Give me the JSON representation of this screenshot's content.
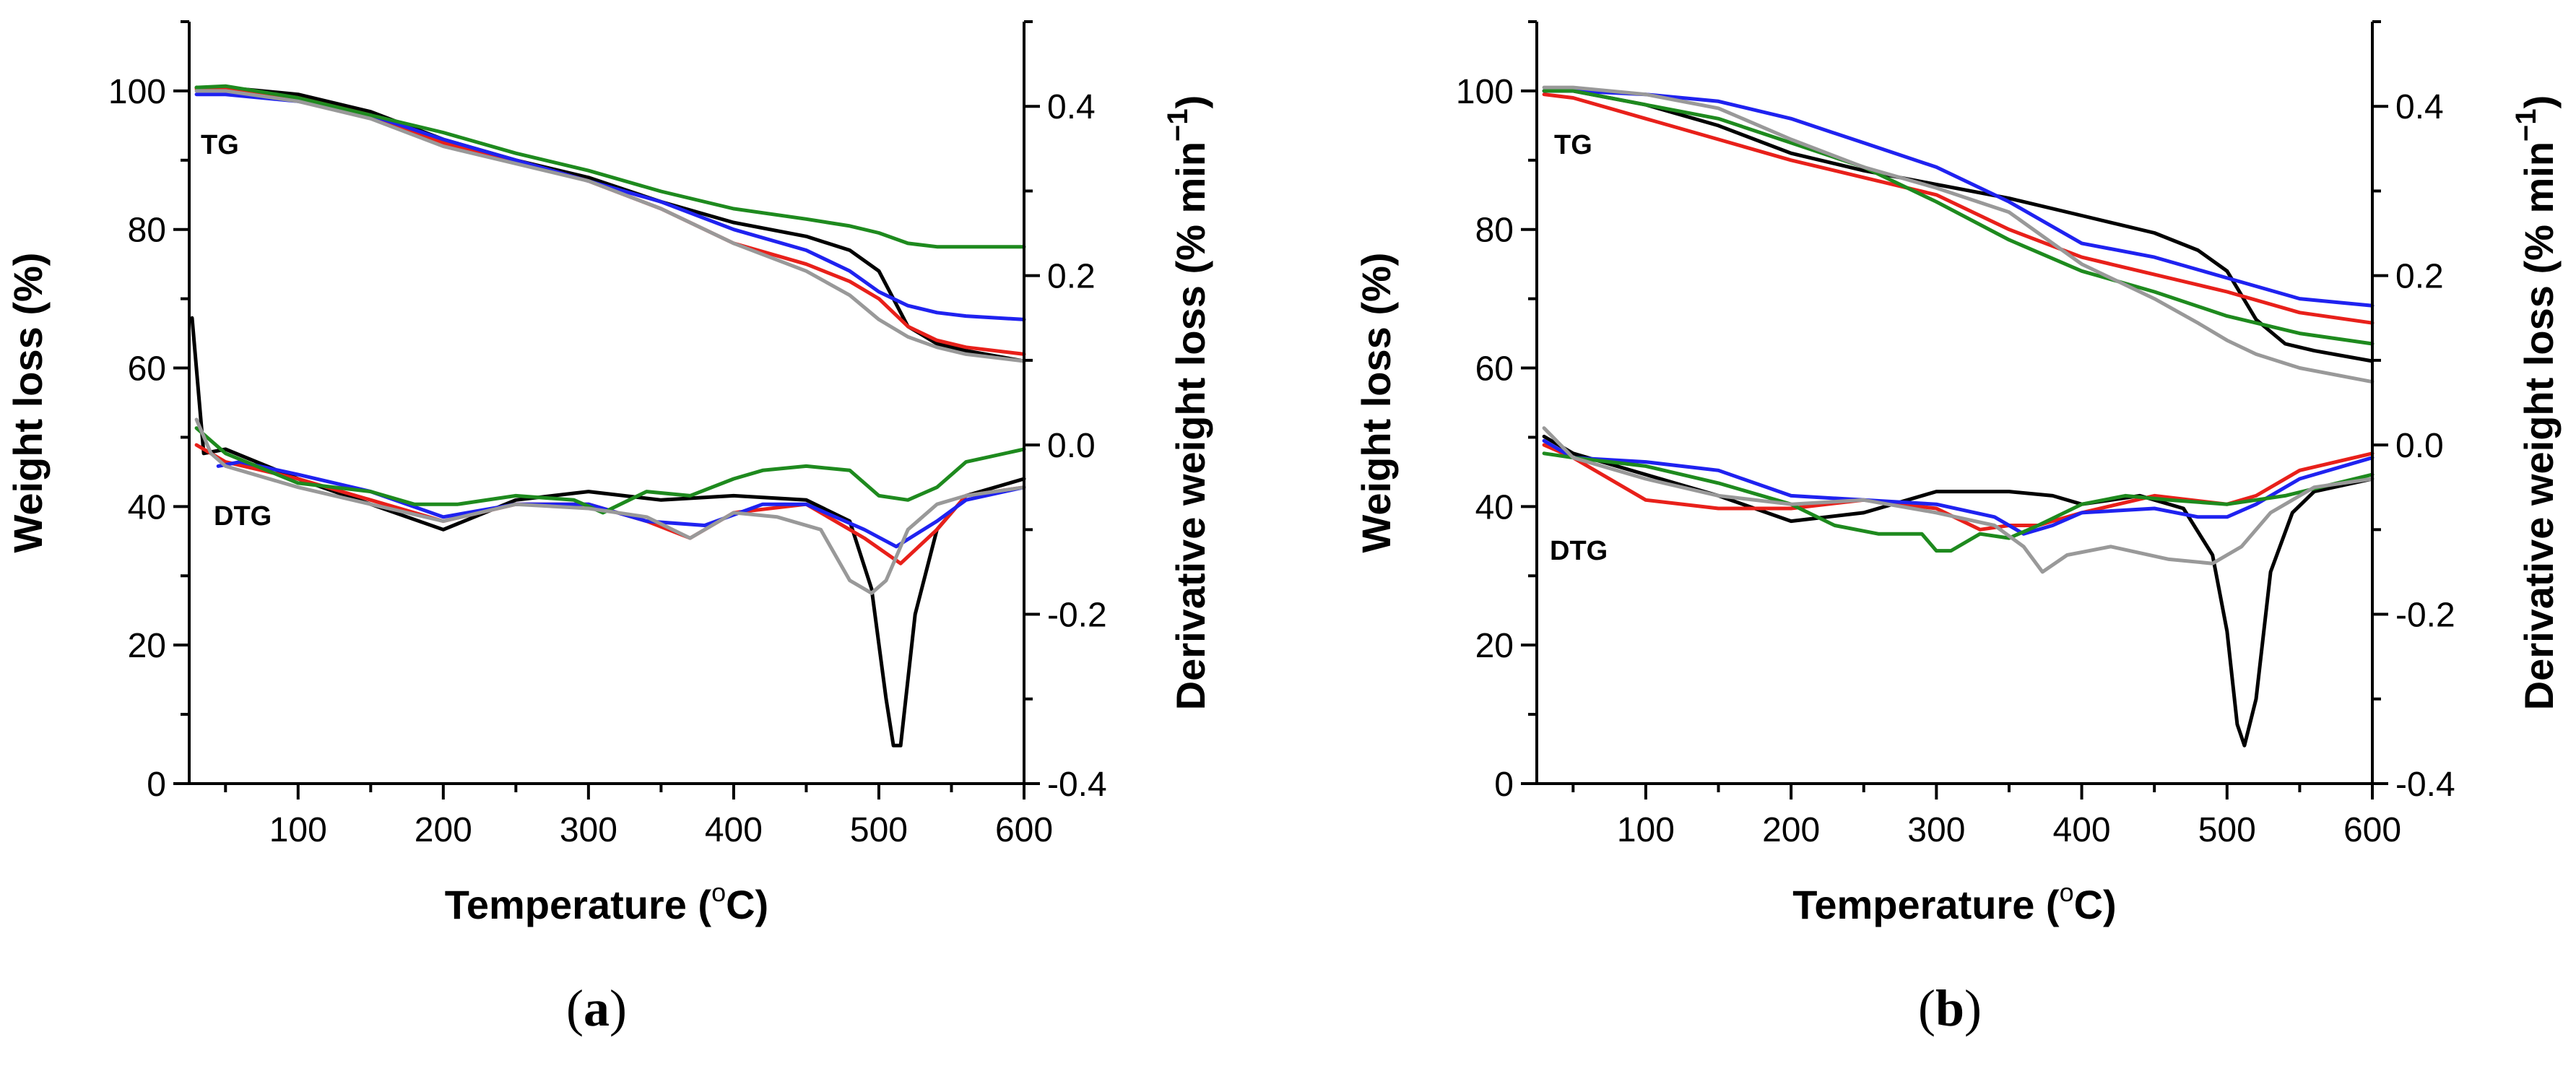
{
  "figure": {
    "panels": [
      {
        "caption": "(a)",
        "caption_letter": "a",
        "tg_label": "TG",
        "dtg_label": "DTG"
      },
      {
        "caption": "(b)",
        "caption_letter": "b",
        "tg_label": "TG",
        "dtg_label": "DTG"
      }
    ]
  },
  "chart_data": [
    {
      "type": "line",
      "panel": "a",
      "xlabel": "Temperature (°C)",
      "xlabel_parts": {
        "before": "Temperature (",
        "degree": "o",
        "after": "C)"
      },
      "ylabel": "Weight loss (%)",
      "y2label": "Derivative weight loss (% min−1)",
      "y2label_parts": {
        "main": "Derivative weight loss (% min",
        "sup": "−1",
        "close": ")"
      },
      "xlim": [
        25,
        600
      ],
      "ylim": [
        0,
        110
      ],
      "y2lim": [
        -0.4,
        0.5
      ],
      "x_ticks": [
        100,
        200,
        300,
        400,
        500,
        600
      ],
      "y_ticks": [
        0,
        20,
        40,
        60,
        80,
        100
      ],
      "y2_ticks": [
        -0.4,
        -0.2,
        0.0,
        0.2,
        0.4
      ],
      "x_tick_labels": [
        "100",
        "200",
        "300",
        "400",
        "500",
        "600"
      ],
      "y_tick_labels": [
        "0",
        "20",
        "40",
        "60",
        "80",
        "100"
      ],
      "y2_tick_labels": [
        "-0.4",
        "-0.2",
        "0.0",
        "0.2",
        "0.4"
      ],
      "series": [
        {
          "name": "TG black",
          "group": "TG",
          "color": "#000000",
          "x": [
            30,
            50,
            100,
            150,
            200,
            250,
            300,
            350,
            400,
            450,
            480,
            500,
            520,
            540,
            560,
            600
          ],
          "y": [
            100.5,
            100.5,
            99.5,
            97,
            93,
            90,
            87.5,
            84,
            81,
            79,
            77,
            74,
            66,
            63.5,
            62.5,
            61
          ]
        },
        {
          "name": "TG red",
          "group": "TG",
          "color": "#e8201a",
          "x": [
            30,
            50,
            100,
            150,
            200,
            250,
            300,
            350,
            400,
            450,
            480,
            500,
            520,
            540,
            560,
            600
          ],
          "y": [
            100.3,
            100.5,
            99,
            96.5,
            92.5,
            90,
            87,
            83,
            78,
            75,
            72.5,
            70,
            66,
            64,
            63,
            62
          ]
        },
        {
          "name": "TG blue",
          "group": "TG",
          "color": "#1f22f0",
          "x": [
            30,
            50,
            100,
            150,
            200,
            250,
            300,
            350,
            400,
            450,
            480,
            500,
            520,
            540,
            560,
            600
          ],
          "y": [
            99.5,
            99.5,
            98.5,
            96.5,
            93,
            90,
            87,
            84,
            80,
            77,
            74,
            71,
            69,
            68,
            67.5,
            67
          ]
        },
        {
          "name": "TG green",
          "group": "TG",
          "color": "#1e8a1e",
          "x": [
            30,
            50,
            100,
            150,
            200,
            250,
            300,
            350,
            400,
            450,
            480,
            500,
            520,
            540,
            560,
            600
          ],
          "y": [
            100.5,
            100.7,
            99,
            96.5,
            94,
            91,
            88.5,
            85.5,
            83,
            81.5,
            80.5,
            79.5,
            78,
            77.5,
            77.5,
            77.5
          ]
        },
        {
          "name": "TG grey",
          "group": "TG",
          "color": "#999999",
          "x": [
            30,
            50,
            100,
            150,
            200,
            250,
            300,
            350,
            400,
            450,
            480,
            500,
            520,
            540,
            560,
            600
          ],
          "y": [
            100,
            100,
            98.5,
            96,
            92,
            89.5,
            87,
            83,
            78,
            74,
            70.5,
            67,
            64.5,
            63,
            62,
            61
          ]
        },
        {
          "name": "DTG black",
          "group": "DTG",
          "color": "#000000",
          "x": [
            27,
            35,
            50,
            100,
            150,
            200,
            250,
            300,
            350,
            400,
            450,
            480,
            495,
            505,
            510,
            515,
            525,
            540,
            560,
            600
          ],
          "y": [
            0.15,
            -0.01,
            -0.005,
            -0.04,
            -0.07,
            -0.1,
            -0.065,
            -0.055,
            -0.065,
            -0.06,
            -0.065,
            -0.09,
            -0.17,
            -0.3,
            -0.355,
            -0.355,
            -0.2,
            -0.1,
            -0.06,
            -0.04
          ]
        },
        {
          "name": "DTG red",
          "group": "DTG",
          "color": "#e8201a",
          "x": [
            30,
            50,
            100,
            150,
            200,
            250,
            300,
            340,
            370,
            400,
            450,
            490,
            515,
            540,
            560,
            600
          ],
          "y": [
            0.0,
            -0.02,
            -0.04,
            -0.065,
            -0.09,
            -0.07,
            -0.07,
            -0.09,
            -0.11,
            -0.08,
            -0.07,
            -0.11,
            -0.14,
            -0.1,
            -0.06,
            -0.05
          ]
        },
        {
          "name": "DTG blue",
          "group": "DTG",
          "color": "#1f22f0",
          "x": [
            45,
            60,
            100,
            150,
            200,
            250,
            300,
            340,
            380,
            420,
            450,
            490,
            512,
            540,
            560,
            600
          ],
          "y": [
            -0.025,
            -0.02,
            -0.035,
            -0.055,
            -0.085,
            -0.07,
            -0.07,
            -0.09,
            -0.095,
            -0.07,
            -0.07,
            -0.1,
            -0.12,
            -0.09,
            -0.065,
            -0.05
          ]
        },
        {
          "name": "DTG green",
          "group": "DTG",
          "color": "#1e8a1e",
          "x": [
            30,
            50,
            100,
            150,
            180,
            210,
            250,
            290,
            310,
            340,
            370,
            400,
            420,
            450,
            480,
            500,
            520,
            540,
            560,
            600
          ],
          "y": [
            0.02,
            -0.01,
            -0.045,
            -0.055,
            -0.07,
            -0.07,
            -0.06,
            -0.065,
            -0.08,
            -0.055,
            -0.06,
            -0.04,
            -0.03,
            -0.025,
            -0.03,
            -0.06,
            -0.065,
            -0.05,
            -0.02,
            -0.005
          ]
        },
        {
          "name": "DTG grey",
          "group": "DTG",
          "color": "#999999",
          "x": [
            30,
            40,
            50,
            100,
            150,
            200,
            250,
            300,
            340,
            370,
            400,
            430,
            460,
            480,
            495,
            505,
            520,
            540,
            560,
            600
          ],
          "y": [
            0.03,
            -0.01,
            -0.025,
            -0.05,
            -0.07,
            -0.09,
            -0.07,
            -0.075,
            -0.085,
            -0.11,
            -0.08,
            -0.085,
            -0.1,
            -0.16,
            -0.175,
            -0.16,
            -0.1,
            -0.07,
            -0.06,
            -0.05
          ]
        }
      ]
    },
    {
      "type": "line",
      "panel": "b",
      "xlabel": "Temperature (°C)",
      "xlabel_parts": {
        "before": "Temperature (",
        "degree": "o",
        "after": "C)"
      },
      "ylabel": "Weight loss (%)",
      "y2label": "Derivative weight loss (% min−1)",
      "y2label_parts": {
        "main": "Derivative weight loss (% min",
        "sup": "−1",
        "close": ")"
      },
      "xlim": [
        25,
        600
      ],
      "ylim": [
        0,
        110
      ],
      "y2lim": [
        -0.4,
        0.5
      ],
      "x_ticks": [
        100,
        200,
        300,
        400,
        500,
        600
      ],
      "y_ticks": [
        0,
        20,
        40,
        60,
        80,
        100
      ],
      "y2_ticks": [
        -0.4,
        -0.2,
        0.0,
        0.2,
        0.4
      ],
      "x_tick_labels": [
        "100",
        "200",
        "300",
        "400",
        "500",
        "600"
      ],
      "y_tick_labels": [
        "0",
        "20",
        "40",
        "60",
        "80",
        "100"
      ],
      "y2_tick_labels": [
        "-0.4",
        "-0.2",
        "0.0",
        "0.2",
        "0.4"
      ],
      "series": [
        {
          "name": "TG black",
          "group": "TG",
          "color": "#000000",
          "x": [
            30,
            50,
            100,
            150,
            200,
            250,
            300,
            350,
            400,
            450,
            480,
            500,
            520,
            540,
            560,
            600
          ],
          "y": [
            100,
            100,
            98,
            95,
            91,
            88.5,
            86.5,
            84.5,
            82,
            79.5,
            77,
            74,
            67,
            63.5,
            62.5,
            61
          ]
        },
        {
          "name": "TG red",
          "group": "TG",
          "color": "#e8201a",
          "x": [
            30,
            50,
            100,
            150,
            200,
            250,
            300,
            350,
            400,
            450,
            500,
            550,
            600
          ],
          "y": [
            99.5,
            99,
            96,
            93,
            90,
            87.5,
            85,
            80,
            76,
            73.5,
            71,
            68,
            66.5
          ]
        },
        {
          "name": "TG blue",
          "group": "TG",
          "color": "#1f22f0",
          "x": [
            30,
            50,
            100,
            150,
            200,
            250,
            300,
            350,
            400,
            450,
            500,
            550,
            600
          ],
          "y": [
            100,
            100,
            99.5,
            98.5,
            96,
            92.5,
            89,
            84,
            78,
            76,
            73,
            70,
            69
          ]
        },
        {
          "name": "TG green",
          "group": "TG",
          "color": "#1e8a1e",
          "x": [
            30,
            50,
            100,
            150,
            200,
            250,
            300,
            350,
            400,
            450,
            500,
            550,
            600
          ],
          "y": [
            100,
            100,
            98,
            96,
            92.5,
            89,
            84,
            78.5,
            74,
            71,
            67.5,
            65,
            63.5
          ]
        },
        {
          "name": "TG grey",
          "group": "TG",
          "color": "#999999",
          "x": [
            30,
            50,
            100,
            150,
            200,
            250,
            300,
            350,
            400,
            450,
            480,
            500,
            520,
            550,
            600
          ],
          "y": [
            100.5,
            100.5,
            99.5,
            97.5,
            93,
            89,
            86,
            82.5,
            75,
            70,
            66.5,
            64,
            62,
            60,
            58
          ]
        },
        {
          "name": "DTG black",
          "group": "DTG",
          "color": "#000000",
          "x": [
            30,
            50,
            100,
            150,
            200,
            250,
            300,
            350,
            380,
            400,
            440,
            470,
            490,
            500,
            507,
            512,
            520,
            530,
            545,
            560,
            600
          ],
          "y": [
            0.01,
            -0.01,
            -0.035,
            -0.06,
            -0.09,
            -0.08,
            -0.055,
            -0.055,
            -0.06,
            -0.07,
            -0.06,
            -0.075,
            -0.13,
            -0.22,
            -0.33,
            -0.355,
            -0.3,
            -0.15,
            -0.08,
            -0.055,
            -0.04
          ]
        },
        {
          "name": "DTG red",
          "group": "DTG",
          "color": "#e8201a",
          "x": [
            30,
            50,
            100,
            150,
            200,
            250,
            300,
            330,
            350,
            370,
            400,
            450,
            500,
            520,
            550,
            600
          ],
          "y": [
            0.0,
            -0.015,
            -0.065,
            -0.075,
            -0.075,
            -0.065,
            -0.075,
            -0.1,
            -0.095,
            -0.095,
            -0.08,
            -0.06,
            -0.07,
            -0.06,
            -0.03,
            -0.01
          ]
        },
        {
          "name": "DTG blue",
          "group": "DTG",
          "color": "#1f22f0",
          "x": [
            30,
            50,
            100,
            150,
            200,
            250,
            300,
            340,
            360,
            380,
            400,
            450,
            480,
            500,
            520,
            550,
            600
          ],
          "y": [
            0.005,
            -0.015,
            -0.02,
            -0.03,
            -0.06,
            -0.065,
            -0.07,
            -0.085,
            -0.105,
            -0.095,
            -0.08,
            -0.075,
            -0.085,
            -0.085,
            -0.07,
            -0.04,
            -0.015
          ]
        },
        {
          "name": "DTG green",
          "group": "DTG",
          "color": "#1e8a1e",
          "x": [
            30,
            50,
            100,
            150,
            200,
            230,
            260,
            290,
            300,
            310,
            330,
            350,
            370,
            400,
            430,
            460,
            500,
            540,
            600
          ],
          "y": [
            -0.01,
            -0.015,
            -0.025,
            -0.045,
            -0.07,
            -0.095,
            -0.105,
            -0.105,
            -0.125,
            -0.125,
            -0.105,
            -0.11,
            -0.095,
            -0.07,
            -0.06,
            -0.065,
            -0.07,
            -0.06,
            -0.035
          ]
        },
        {
          "name": "DTG grey",
          "group": "DTG",
          "color": "#999999",
          "x": [
            30,
            50,
            100,
            150,
            200,
            250,
            300,
            340,
            360,
            373,
            390,
            420,
            460,
            490,
            510,
            530,
            560,
            600
          ],
          "y": [
            0.02,
            -0.015,
            -0.04,
            -0.06,
            -0.07,
            -0.065,
            -0.08,
            -0.095,
            -0.12,
            -0.15,
            -0.13,
            -0.12,
            -0.135,
            -0.14,
            -0.12,
            -0.08,
            -0.05,
            -0.04
          ]
        }
      ]
    }
  ]
}
